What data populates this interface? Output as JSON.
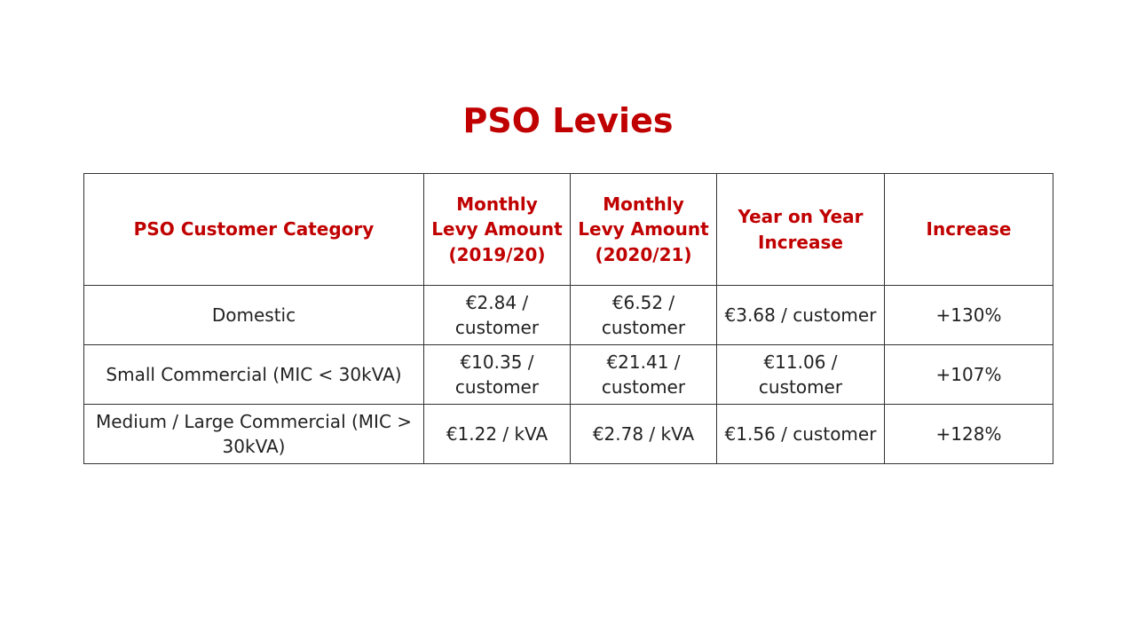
{
  "title": "PSO Levies",
  "table": {
    "headers": [
      "PSO Customer Category",
      "Monthly Levy Amount (2019/20)",
      "Monthly Levy Amount (2020/21)",
      "Year on Year Increase",
      "Increase"
    ],
    "rows": [
      [
        "Domestic",
        "€2.84 / customer",
        "€6.52 / customer",
        "€3.68 / customer",
        "+130%"
      ],
      [
        "Small Commercial (MIC < 30kVA)",
        "€10.35 / customer",
        "€21.41 / customer",
        "€11.06 / customer",
        "+107%"
      ],
      [
        "Medium / Large Commercial (MIC > 30kVA)",
        "€1.22 / kVA",
        "€2.78 / kVA",
        "€1.56 / customer",
        "+128%"
      ]
    ]
  },
  "colors": {
    "accent": "#c00000",
    "text": "#222222",
    "border": "#333333",
    "background": "#ffffff"
  }
}
